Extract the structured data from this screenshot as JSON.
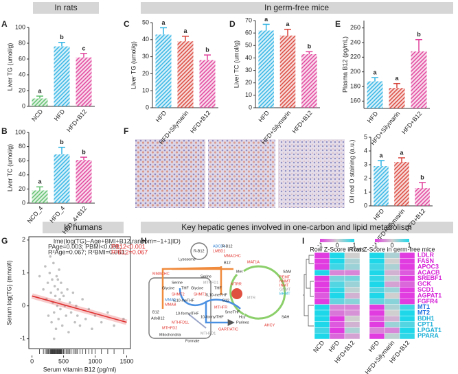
{
  "headers": [
    "In rats",
    "In germ-free mice",
    "In humans",
    "Key hepatic genes involved in one-carbon and lipid metabolism"
  ],
  "panel_letters": [
    "A",
    "B",
    "C",
    "D",
    "E",
    "F",
    "G",
    "H",
    "I"
  ],
  "chart_data": [
    {
      "type": "bar",
      "ylabel": "Liver TG (umol/g)",
      "categories": [
        "NCD",
        "HFD",
        "HFD+B12"
      ],
      "values": [
        10,
        76,
        62
      ],
      "errors": [
        3,
        5,
        5
      ],
      "annotations": [
        "a",
        "b",
        "c"
      ],
      "colors": [
        "#5cbf6a",
        "#2fb3e3",
        "#e0409a"
      ],
      "ylim": [
        0,
        100
      ],
      "yticks": [
        0,
        20,
        40,
        60,
        80,
        100
      ]
    },
    {
      "type": "bar",
      "ylabel": "Liver TC (umol/g)",
      "categories": [
        "NCD_4",
        "HFD_4",
        "HFD_4+B12"
      ],
      "values": [
        18,
        69,
        61
      ],
      "errors": [
        5,
        10,
        4
      ],
      "annotations": [
        "a",
        "b",
        "b"
      ],
      "colors": [
        "#5cbf6a",
        "#2fb3e3",
        "#e0409a"
      ],
      "ylim": [
        0,
        100
      ],
      "yticks": [
        0,
        20,
        40,
        60,
        80,
        100
      ]
    },
    {
      "type": "bar",
      "ylabel": "Liver TG (umol/g)",
      "categories": [
        "HFD",
        "HFD+Silymarin",
        "HFD+B12"
      ],
      "values": [
        43,
        39,
        28
      ],
      "errors": [
        4,
        3,
        3
      ],
      "annotations": [
        "a",
        "a",
        "b"
      ],
      "colors": [
        "#2fb3e3",
        "#d9443a",
        "#e0409a"
      ],
      "ylim": [
        0,
        50
      ],
      "yticks": [
        0,
        10,
        20,
        30,
        40,
        50
      ]
    },
    {
      "type": "bar",
      "ylabel": "Liver TC (umol/g)",
      "categories": [
        "HFD",
        "HFD+Silymarin",
        "HFD+B12"
      ],
      "values": [
        62,
        58,
        43
      ],
      "errors": [
        5,
        5,
        2
      ],
      "annotations": [
        "a",
        "a",
        "b"
      ],
      "colors": [
        "#2fb3e3",
        "#d9443a",
        "#e0409a"
      ],
      "ylim": [
        0,
        70
      ],
      "yticks": [
        0,
        10,
        20,
        30,
        40,
        50,
        60,
        70
      ]
    },
    {
      "type": "bar",
      "ylabel": "Plasma B12 (pg/mL)",
      "categories": [
        "HFD",
        "HFD+Silymarin",
        "HFD+B12"
      ],
      "values": [
        187,
        178,
        228
      ],
      "errors": [
        5,
        6,
        16
      ],
      "annotations": [
        "a",
        "a",
        "b"
      ],
      "colors": [
        "#2fb3e3",
        "#d9443a",
        "#e0409a"
      ],
      "ylim": [
        150,
        270
      ],
      "yticks": [
        160,
        180,
        200,
        220,
        240,
        260
      ]
    },
    {
      "type": "bar",
      "ylabel": "Oil red O staining (a.u.)",
      "categories": [
        "HFD",
        "HFD+Silymarin",
        "HFD+B12"
      ],
      "values": [
        2.9,
        3.2,
        1.3
      ],
      "errors": [
        0.4,
        0.3,
        0.4
      ],
      "annotations": [
        "a",
        "a",
        "b"
      ],
      "colors": [
        "#2fb3e3",
        "#d9443a",
        "#e0409a"
      ],
      "ylim": [
        0,
        5
      ],
      "yticks": [
        0,
        1,
        2,
        3,
        4,
        5
      ]
    },
    {
      "type": "scatter",
      "ylabel": "Serum log(TG) (mmol/l)",
      "xlabel": "Serum vitamin B12 (pg/ml)",
      "color": "#b0b0b0",
      "fit_color": "#e03030",
      "annotations": [
        "lme(log(TG)~Age+BMI+B12,random=~1+1|ID)",
        "PAge=0.003; PBMI<0.001; ",
        "PB12<0.001",
        "R²Age=0.067; R²BMI=0.061; ",
        "R²B12=0.067"
      ],
      "x": [
        120,
        180,
        210,
        230,
        250,
        260,
        280,
        300,
        310,
        320,
        330,
        340,
        350,
        360,
        370,
        380,
        390,
        400,
        410,
        420,
        430,
        440,
        450,
        460,
        480,
        500,
        520,
        540,
        560,
        580,
        600,
        620,
        650,
        680,
        700,
        720,
        760,
        800,
        850,
        900,
        950,
        1000,
        1100,
        1200,
        1300,
        1450,
        290,
        350,
        410,
        470
      ],
      "y": [
        0.9,
        0.5,
        1.2,
        0.2,
        0.7,
        -0.3,
        1.0,
        0.4,
        -0.5,
        0.8,
        0.1,
        1.3,
        -0.2,
        0.6,
        0.3,
        -0.7,
        0.9,
        0.0,
        0.5,
        -0.4,
        1.1,
        0.2,
        -0.1,
        0.7,
        -0.6,
        0.3,
        0.0,
        -0.3,
        0.5,
        -0.8,
        0.1,
        -0.2,
        0.4,
        -0.5,
        0.0,
        -0.3,
        -0.6,
        0.2,
        -0.4,
        -0.1,
        -0.7,
        -0.3,
        -0.5,
        -0.2,
        -0.6,
        -0.4,
        1.5,
        -1.0,
        0.8,
        0.4
      ],
      "fit": {
        "x": [
          0,
          1500
        ],
        "y": [
          0.3,
          -0.5
        ]
      },
      "xlim": [
        -50,
        1560
      ],
      "xticks": [
        0,
        500,
        1000,
        1500
      ],
      "ylim": [
        -1.3,
        2.1
      ],
      "yticks": [
        -1,
        0,
        1,
        2
      ]
    },
    {
      "type": "heatmap",
      "title": "Row Z-Score in rats",
      "columns": [
        "NCD",
        "HFD",
        "HFD+B12"
      ],
      "colorbar_ticks": [
        -1,
        0,
        1
      ],
      "low_color": "#e03ce0",
      "mid_color": "#cfcfcf",
      "high_color": "#1ed8ea",
      "values": [
        [
          -1,
          1,
          0
        ],
        [
          -1,
          1,
          0.2
        ],
        [
          -1,
          0.8,
          0.3
        ],
        [
          1,
          -0.5,
          -0.5
        ],
        [
          -1,
          0.5,
          0.5
        ],
        [
          -1,
          0.7,
          0.3
        ],
        [
          -1,
          0.9,
          0.1
        ],
        [
          -0.8,
          1,
          -0.2
        ],
        [
          -1,
          0.6,
          0.4
        ],
        [
          1,
          -0.5,
          -0.5
        ],
        [
          1,
          -0.6,
          -0.4
        ],
        [
          1,
          -1,
          0
        ],
        [
          1,
          -0.8,
          -0.2
        ],
        [
          0.8,
          -1,
          0.2
        ],
        [
          1,
          -0.7,
          -0.3
        ]
      ]
    },
    {
      "type": "heatmap",
      "title": "Row Z-Score in germ-free mice",
      "columns": [
        "HFD",
        "HFD+Silymarin",
        "HFD+B12"
      ],
      "colorbar_ticks": [
        -1,
        0,
        1
      ],
      "low_color": "#e03ce0",
      "mid_color": "#cfcfcf",
      "high_color": "#1ed8ea",
      "rows": [
        "LDLR",
        "FASN",
        "APOC3",
        "ACACB",
        "SREBF1",
        "GCK",
        "SCD1",
        "AGPAT1",
        "FGFR4",
        "MT1",
        "MT2",
        "BDH1",
        "CPT1",
        "LPGAT1",
        "PPARA"
      ],
      "row_colors": [
        "#d61fd6",
        "#d61fd6",
        "#d61fd6",
        "#d61fd6",
        "#d61fd6",
        "#d61fd6",
        "#d61fd6",
        "#d61fd6",
        "#d61fd6",
        "#1f6fe0",
        "#1f6fe0",
        "#1aaed6",
        "#1aaed6",
        "#1aaed6",
        "#1aaed6"
      ],
      "values": [
        [
          1,
          0.2,
          -1
        ],
        [
          1,
          0,
          -1
        ],
        [
          0.8,
          0.2,
          -1
        ],
        [
          1,
          -0.2,
          -0.8
        ],
        [
          0.9,
          0.1,
          -1
        ],
        [
          1,
          -0.3,
          -0.7
        ],
        [
          0.7,
          0.3,
          -1
        ],
        [
          1,
          0,
          -1
        ],
        [
          0.6,
          0.4,
          -1
        ],
        [
          -1,
          0.2,
          0.8
        ],
        [
          -1,
          0,
          1
        ],
        [
          -0.8,
          -0.2,
          1
        ],
        [
          -1,
          0.3,
          0.7
        ],
        [
          -0.5,
          -0.5,
          1
        ],
        [
          -1,
          0.1,
          0.9
        ]
      ]
    }
  ],
  "pathway": {
    "labels": [
      "Lysosome",
      "R-B12",
      "ABCD4",
      "LMBD1",
      "R-B12",
      "MMACHC",
      "B12",
      "MMACHC",
      "MAT1A",
      "Met",
      "SAM",
      "PEMT",
      "NNMT",
      "INMT",
      "GNMT",
      "BHMT",
      "MTR",
      "MTRR",
      "B12",
      "Hcy",
      "SAH",
      "AHCY",
      "Serine",
      "Glycine",
      "THF",
      "5,10-meTHF",
      "SHMT2",
      "SHMT1",
      "Serine",
      "Glycine",
      "THF",
      "MTHFR",
      "5,10-meTHF",
      "5meTHF",
      "MMAA",
      "MMAB",
      "B12",
      "AdoB12",
      "10-formylTHF",
      "MTHFD1L",
      "MTHFD2",
      "MTHFD1",
      "10-formylTHF",
      "MTHFD1",
      "GART/ATIC",
      "Purines",
      "Formate",
      "Mitochondria"
    ]
  }
}
